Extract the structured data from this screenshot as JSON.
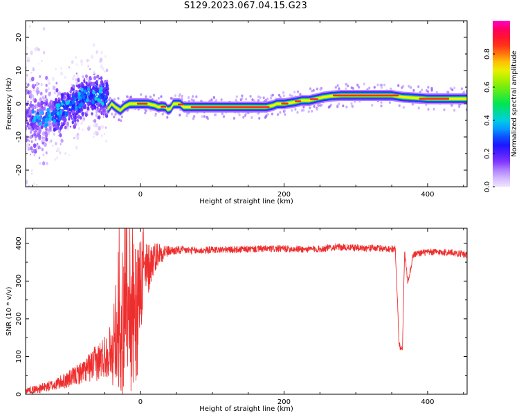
{
  "title": "S129.2023.067.04.15.G23",
  "chart_data": [
    {
      "type": "heatmap",
      "xlabel": "Height of straight line (km)",
      "ylabel": "Frequency (Hz)",
      "xlim": [
        -160,
        455
      ],
      "ylim": [
        -25,
        25
      ],
      "xticks": [
        0,
        200,
        400
      ],
      "yticks": [
        -20,
        -10,
        0,
        10,
        20
      ],
      "colorbar": {
        "label": "Normalized spectral amplitude",
        "range": [
          0,
          1
        ],
        "ticks": [
          0.0,
          0.2,
          0.4,
          0.6,
          0.8
        ]
      },
      "ridge": {
        "x": [
          -45,
          -40,
          -35,
          -28,
          -22,
          -15,
          -8,
          0,
          10,
          20,
          25,
          30,
          35,
          38,
          42,
          46,
          50,
          55,
          60,
          65,
          70,
          90,
          120,
          150,
          175,
          185,
          190,
          200,
          215,
          225,
          235,
          245,
          255,
          265,
          280,
          310,
          330,
          350,
          365,
          380,
          400,
          430,
          455
        ],
        "y": [
          -1.5,
          0,
          -1,
          -2,
          -0.8,
          0,
          0,
          0,
          0,
          -0.5,
          -1,
          -0.8,
          -1,
          -1.8,
          -1.5,
          0,
          0,
          0,
          -1,
          -1,
          -1,
          -1,
          -1,
          -1,
          -1,
          -0.5,
          0,
          0,
          0.5,
          1,
          1,
          1.5,
          2,
          2.3,
          2.5,
          2.5,
          2.5,
          2.5,
          2,
          1.8,
          1.5,
          1.5,
          1.5
        ]
      },
      "scatter_region": {
        "x_range": [
          -160,
          -45
        ],
        "center_trend": {
          "x": [
            -160,
            -140,
            -120,
            -100,
            -80,
            -60,
            -45
          ],
          "y": [
            -3,
            -5,
            -3,
            -1,
            2,
            3,
            1
          ]
        }
      }
    },
    {
      "type": "line",
      "xlabel": "Height of straight line (km)",
      "ylabel": "SNR (10 * v/v)",
      "xlim": [
        -160,
        455
      ],
      "ylim": [
        0,
        440
      ],
      "xticks": [
        0,
        200,
        400
      ],
      "yticks": [
        0,
        100,
        200,
        300,
        400
      ],
      "color": "#ee2e2e",
      "trend": {
        "x": [
          -160,
          -140,
          -120,
          -100,
          -80,
          -60,
          -40,
          -25,
          -15,
          -10,
          -5,
          0,
          5,
          10,
          15,
          20,
          25,
          30,
          40,
          60,
          80,
          100,
          130,
          160,
          200,
          230,
          250,
          270,
          300,
          330,
          355,
          358,
          360,
          362,
          365,
          368,
          372,
          375,
          380,
          390,
          410,
          430,
          455
        ],
        "y": [
          10,
          15,
          25,
          40,
          60,
          85,
          120,
          160,
          210,
          250,
          270,
          290,
          310,
          330,
          350,
          365,
          372,
          376,
          380,
          382,
          380,
          383,
          383,
          385,
          386,
          384,
          385,
          390,
          388,
          387,
          385,
          250,
          135,
          125,
          125,
          385,
          300,
          320,
          370,
          375,
          377,
          376,
          370
        ]
      },
      "noise": {
        "x": [
          -160,
          -120,
          -80,
          -40,
          -25,
          0,
          20,
          40,
          100,
          300,
          455
        ],
        "amplitude": [
          8,
          15,
          30,
          70,
          160,
          110,
          40,
          12,
          9,
          9,
          9
        ]
      }
    }
  ]
}
